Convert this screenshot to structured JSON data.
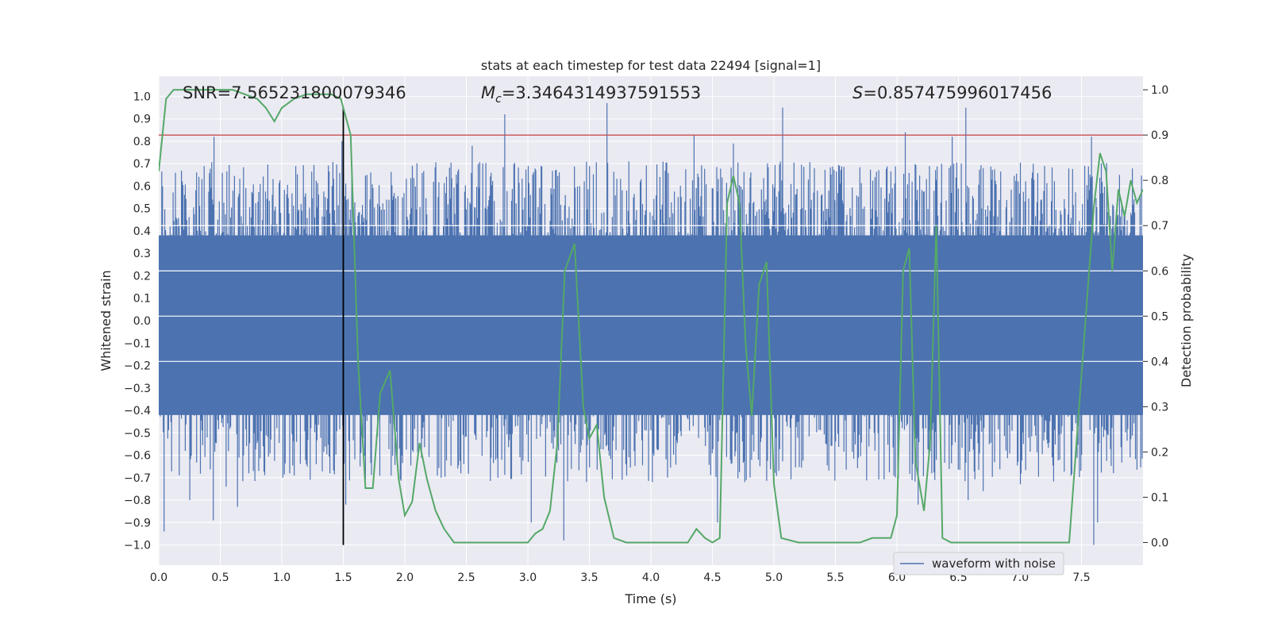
{
  "chart_data": {
    "type": "line",
    "title": "stats at each timestep for test data 22494 [signal=1]",
    "xlabel": "Time (s)",
    "ylabel": "Whitened strain",
    "ylabel_right": "Detection probability",
    "xlim": [
      0.0,
      8.0
    ],
    "ylim": [
      -1.09,
      1.09
    ],
    "ylim_right": [
      -0.05,
      1.03
    ],
    "xticks": [
      0.0,
      0.5,
      1.0,
      1.5,
      2.0,
      2.5,
      3.0,
      3.5,
      4.0,
      4.5,
      5.0,
      5.5,
      6.0,
      6.5,
      7.0,
      7.5
    ],
    "xtick_labels": [
      "0.0",
      "0.5",
      "1.0",
      "1.5",
      "2.0",
      "2.5",
      "3.0",
      "3.5",
      "4.0",
      "4.5",
      "5.0",
      "5.5",
      "6.0",
      "6.5",
      "7.0",
      "7.5"
    ],
    "yticks": [
      1.0,
      0.9,
      0.8,
      0.7,
      0.6,
      0.5,
      0.4,
      0.3,
      0.2,
      0.1,
      0.0,
      -0.1,
      -0.2,
      -0.3,
      -0.4,
      -0.5,
      -0.6,
      -0.7,
      -0.8,
      -0.9,
      -1.0
    ],
    "ytick_labels": [
      "1.0",
      "0.9",
      "0.8",
      "0.7",
      "0.6",
      "0.5",
      "0.4",
      "0.3",
      "0.2",
      "0.1",
      "0.0",
      "−0.1",
      "−0.2",
      "−0.3",
      "−0.4",
      "−0.5",
      "−0.6",
      "−0.7",
      "−0.8",
      "−0.9",
      "−1.0"
    ],
    "yticks_right": [
      1.0,
      0.9,
      0.8,
      0.7,
      0.6,
      0.5,
      0.4,
      0.3,
      0.2,
      0.1,
      0.0
    ],
    "ytick_labels_right": [
      "1.0",
      "0.9",
      "0.8",
      "0.7",
      "0.6",
      "0.5",
      "0.4",
      "0.3",
      "0.2",
      "0.1",
      "0.0"
    ],
    "annotations": {
      "snr": "SNR=7.565231800079346",
      "mc_symbol": "M",
      "mc_sub": "c",
      "mc_value": "=3.3464314937591553",
      "s_symbol": "S",
      "s_value": "=0.857475996017456"
    },
    "series": [
      {
        "name": "waveform with noise",
        "axis": "left",
        "color": "#4c72b0",
        "envelope": {
          "core_low": -0.42,
          "core_high": 0.38,
          "peak_range": [
            -1.0,
            0.97
          ]
        },
        "spikes": [
          {
            "x": 0.04,
            "y": -0.94
          },
          {
            "x": 0.25,
            "y": -0.8
          },
          {
            "x": 0.44,
            "y": -0.89
          },
          {
            "x": 0.64,
            "y": -0.83
          },
          {
            "x": 0.45,
            "y": 0.82
          },
          {
            "x": 1.52,
            "y": -0.82
          },
          {
            "x": 1.49,
            "y": 0.8
          },
          {
            "x": 2.81,
            "y": 0.92
          },
          {
            "x": 2.55,
            "y": 0.78
          },
          {
            "x": 3.03,
            "y": -0.9
          },
          {
            "x": 3.29,
            "y": -0.98
          },
          {
            "x": 3.64,
            "y": 0.97
          },
          {
            "x": 4.35,
            "y": 0.83
          },
          {
            "x": 4.54,
            "y": -0.9
          },
          {
            "x": 4.67,
            "y": 0.79
          },
          {
            "x": 5.07,
            "y": 0.95
          },
          {
            "x": 6.07,
            "y": 0.84
          },
          {
            "x": 6.17,
            "y": -0.82
          },
          {
            "x": 6.45,
            "y": 0.82
          },
          {
            "x": 6.56,
            "y": 0.95
          },
          {
            "x": 6.58,
            "y": -0.8
          },
          {
            "x": 6.7,
            "y": -0.76
          },
          {
            "x": 7.58,
            "y": 0.82
          },
          {
            "x": 7.6,
            "y": -1.0
          },
          {
            "x": 7.63,
            "y": -0.9
          },
          {
            "x": 7.0,
            "y": -0.73
          },
          {
            "x": 0.55,
            "y": -0.74
          }
        ]
      },
      {
        "name": "detection probability",
        "axis": "right",
        "color": "#55a868",
        "x": [
          0.0,
          0.06,
          0.12,
          0.2,
          0.3,
          0.45,
          0.6,
          0.7,
          0.8,
          0.87,
          0.94,
          1.0,
          1.1,
          1.2,
          1.3,
          1.4,
          1.48,
          1.5,
          1.56,
          1.62,
          1.68,
          1.74,
          1.8,
          1.88,
          1.95,
          2.0,
          2.06,
          2.12,
          2.18,
          2.25,
          2.32,
          2.4,
          2.5,
          2.6,
          2.8,
          3.0,
          3.06,
          3.12,
          3.18,
          3.24,
          3.3,
          3.38,
          3.45,
          3.5,
          3.56,
          3.62,
          3.7,
          3.8,
          4.0,
          4.2,
          4.3,
          4.37,
          4.44,
          4.5,
          4.56,
          4.62,
          4.67,
          4.72,
          4.77,
          4.82,
          4.88,
          4.94,
          5.0,
          5.06,
          5.2,
          5.3,
          5.4,
          5.5,
          5.7,
          5.8,
          5.87,
          5.95,
          6.0,
          6.05,
          6.1,
          6.15,
          6.22,
          6.27,
          6.32,
          6.37,
          6.44,
          6.5,
          6.55,
          6.6,
          6.65,
          6.75,
          6.85,
          7.0,
          7.2,
          7.4,
          7.6,
          7.65,
          7.7,
          7.75,
          7.8,
          7.85,
          7.9,
          7.95,
          8.0
        ],
        "y": [
          0.82,
          0.98,
          1.0,
          1.0,
          1.0,
          1.0,
          1.0,
          0.99,
          0.98,
          0.96,
          0.93,
          0.96,
          0.98,
          0.99,
          0.99,
          0.99,
          0.98,
          0.96,
          0.9,
          0.4,
          0.12,
          0.12,
          0.33,
          0.38,
          0.14,
          0.06,
          0.09,
          0.22,
          0.14,
          0.07,
          0.03,
          0.0,
          0.0,
          0.0,
          0.0,
          0.0,
          0.02,
          0.03,
          0.07,
          0.22,
          0.6,
          0.66,
          0.3,
          0.23,
          0.26,
          0.1,
          0.01,
          0.0,
          0.0,
          0.0,
          0.0,
          0.03,
          0.01,
          0.0,
          0.01,
          0.75,
          0.81,
          0.75,
          0.44,
          0.28,
          0.57,
          0.62,
          0.13,
          0.01,
          0.0,
          0.0,
          0.0,
          0.0,
          0.0,
          0.01,
          0.01,
          0.01,
          0.06,
          0.6,
          0.65,
          0.18,
          0.07,
          0.22,
          0.7,
          0.01,
          0.0,
          0.0,
          0.0,
          0.0,
          0.0,
          0.0,
          0.0,
          0.0,
          0.0,
          0.0,
          0.74,
          0.86,
          0.82,
          0.6,
          0.78,
          0.72,
          0.8,
          0.75,
          0.78
        ]
      }
    ],
    "threshold": {
      "axis": "right",
      "y": 0.9,
      "color": "#c44e52"
    },
    "vline": {
      "x": 1.5,
      "y_range": [
        -1.0,
        0.95
      ],
      "color": "#000000"
    },
    "legend": {
      "label": "waveform with noise",
      "placement": "bottom-right"
    },
    "grid": true
  }
}
